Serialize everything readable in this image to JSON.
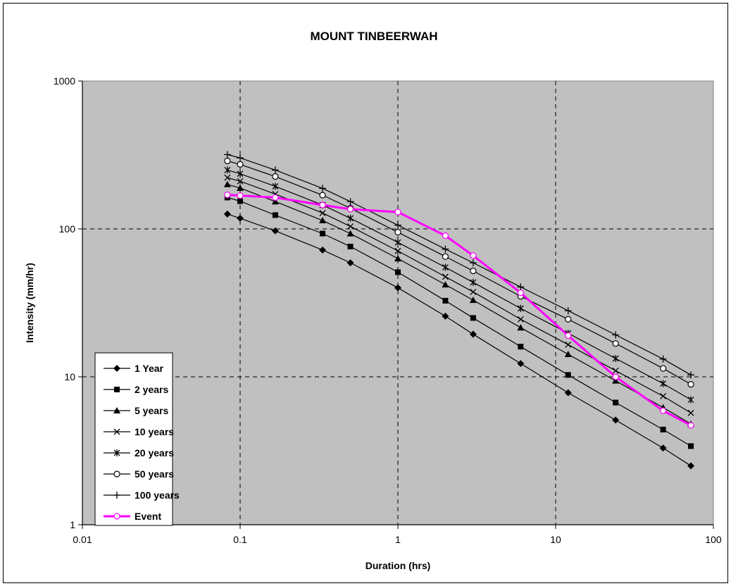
{
  "chart_data": {
    "type": "line",
    "title": "MOUNT TINBEERWAH",
    "xlabel": "Duration (hrs)",
    "ylabel": "Intensity (mm/hr)",
    "x_scale": "log",
    "y_scale": "log",
    "xlim": [
      0.01,
      100
    ],
    "ylim": [
      1,
      1000
    ],
    "x_ticks": [
      {
        "value": 0.01,
        "label": "0.01"
      },
      {
        "value": 0.1,
        "label": "0.1"
      },
      {
        "value": 1,
        "label": "1"
      },
      {
        "value": 10,
        "label": "10"
      },
      {
        "value": 100,
        "label": "100"
      }
    ],
    "y_ticks": [
      {
        "value": 1,
        "label": "1"
      },
      {
        "value": 10,
        "label": "10"
      },
      {
        "value": 100,
        "label": "100"
      },
      {
        "value": 1000,
        "label": "1000"
      }
    ],
    "grid": "major, dashed",
    "legend_position": "bottom-left",
    "x": [
      0.083,
      0.1,
      0.167,
      0.333,
      0.5,
      1,
      2,
      3,
      6,
      12,
      24,
      48,
      72
    ],
    "series": [
      {
        "name": "1 Year",
        "marker": "diamond",
        "color": "#000000",
        "values": [
          126,
          118,
          97,
          72,
          59,
          40,
          25.7,
          19.4,
          12.3,
          7.8,
          5.1,
          3.3,
          2.5
        ]
      },
      {
        "name": "2 years",
        "marker": "square",
        "color": "#000000",
        "values": [
          163,
          154,
          124,
          93,
          76,
          51,
          32.7,
          25,
          16,
          10.3,
          6.7,
          4.4,
          3.4
        ]
      },
      {
        "name": "5 years",
        "marker": "triangle",
        "color": "#000000",
        "values": [
          200,
          189,
          153,
          114,
          93,
          63,
          42,
          33,
          21.5,
          14.2,
          9.4,
          6.2,
          4.8
        ]
      },
      {
        "name": "10 years",
        "marker": "x",
        "color": "#000000",
        "values": [
          222,
          210,
          172,
          128,
          104,
          71,
          47.5,
          37.5,
          24.5,
          16.5,
          11,
          7.4,
          5.7
        ]
      },
      {
        "name": "20 years",
        "marker": "star",
        "color": "#000000",
        "values": [
          250,
          236,
          194,
          145,
          118,
          81,
          55,
          43.5,
          29,
          19.7,
          13.3,
          9,
          7
        ]
      },
      {
        "name": "50 years",
        "marker": "circle-open",
        "color": "#000000",
        "values": [
          288,
          273,
          226,
          169,
          138,
          95,
          65,
          52,
          35,
          24.5,
          16.8,
          11.4,
          8.9
        ]
      },
      {
        "name": "100 years",
        "marker": "plus",
        "color": "#000000",
        "values": [
          318,
          302,
          250,
          188,
          153,
          106,
          73,
          59,
          40.5,
          28,
          19.2,
          13.2,
          10.3
        ]
      },
      {
        "name": "Event",
        "marker": "circle-open",
        "color": "#ff00ff",
        "values": [
          170,
          168,
          163,
          145,
          136,
          130,
          90,
          66,
          37,
          19,
          10,
          5.9,
          4.7
        ]
      }
    ]
  }
}
